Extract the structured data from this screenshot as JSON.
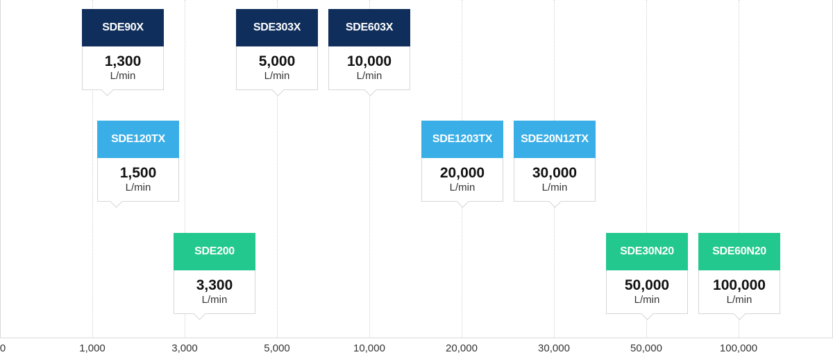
{
  "chart_data": {
    "type": "scatter",
    "title": "",
    "xlabel": "",
    "ylabel": "",
    "x_ticks": [
      "0",
      "1,000",
      "3,000",
      "5,000",
      "10,000",
      "20,000",
      "30,000",
      "50,000",
      "100,000"
    ],
    "colors": {
      "series_a": "#0f2e5b",
      "series_b": "#3aaee6",
      "series_c": "#23c88e"
    },
    "models": [
      {
        "name": "SDE90X",
        "value": 1300,
        "value_label": "1,300",
        "unit": "L/min",
        "row": 1,
        "group": "series_a"
      },
      {
        "name": "SDE303X",
        "value": 5000,
        "value_label": "5,000",
        "unit": "L/min",
        "row": 1,
        "group": "series_a"
      },
      {
        "name": "SDE603X",
        "value": 10000,
        "value_label": "10,000",
        "unit": "L/min",
        "row": 1,
        "group": "series_a"
      },
      {
        "name": "SDE120TX",
        "value": 1500,
        "value_label": "1,500",
        "unit": "L/min",
        "row": 2,
        "group": "series_b"
      },
      {
        "name": "SDE1203TX",
        "value": 20000,
        "value_label": "20,000",
        "unit": "L/min",
        "row": 2,
        "group": "series_b"
      },
      {
        "name": "SDE20N12TX",
        "value": 30000,
        "value_label": "30,000",
        "unit": "L/min",
        "row": 2,
        "group": "series_b"
      },
      {
        "name": "SDE200",
        "value": 3300,
        "value_label": "3,300",
        "unit": "L/min",
        "row": 3,
        "group": "series_c"
      },
      {
        "name": "SDE30N20",
        "value": 50000,
        "value_label": "50,000",
        "unit": "L/min",
        "row": 3,
        "group": "series_c"
      },
      {
        "name": "SDE60N20",
        "value": 100000,
        "value_label": "100,000",
        "unit": "L/min",
        "row": 3,
        "group": "series_c"
      }
    ]
  }
}
